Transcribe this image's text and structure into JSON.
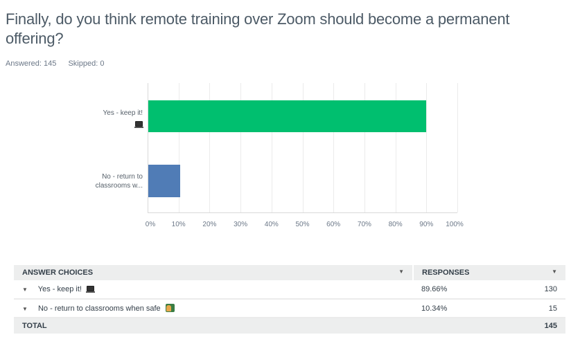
{
  "question": {
    "title": "Finally, do you think remote training over Zoom should become a permanent offering?",
    "answered_label": "Answered: 145",
    "skipped_label": "Skipped: 0"
  },
  "colors": {
    "bar_yes": "#00bf6f",
    "bar_no": "#507cb6",
    "grid": "#ebebeb",
    "header_bg": "#edeeee"
  },
  "chart_data": {
    "type": "bar",
    "orientation": "horizontal",
    "categories": [
      "Yes - keep it! 💻",
      "No - return to classrooms when safe 👩‍🏫"
    ],
    "category_labels_displayed": [
      "Yes - keep it!",
      "No - return to classrooms w..."
    ],
    "values": [
      89.66,
      10.34
    ],
    "title": "Finally, do you think remote training over Zoom should become a permanent offering?",
    "xlabel": "",
    "ylabel": "",
    "xlim": [
      0,
      100
    ],
    "x_ticks": [
      "0%",
      "10%",
      "20%",
      "30%",
      "40%",
      "50%",
      "60%",
      "70%",
      "80%",
      "90%",
      "100%"
    ],
    "grid": true,
    "legend": "none",
    "colors": [
      "#00bf6f",
      "#507cb6"
    ]
  },
  "table": {
    "headers": {
      "answer_choices": "ANSWER CHOICES",
      "responses": "RESPONSES"
    },
    "rows": [
      {
        "choice": "Yes - keep it!",
        "icon": "laptop-emoji-icon",
        "percent": "89.66%",
        "count": "130"
      },
      {
        "choice": "No - return to classrooms when safe",
        "icon": "teacher-emoji-icon",
        "percent": "10.34%",
        "count": "15"
      }
    ],
    "total": {
      "label": "TOTAL",
      "count": "145"
    }
  }
}
